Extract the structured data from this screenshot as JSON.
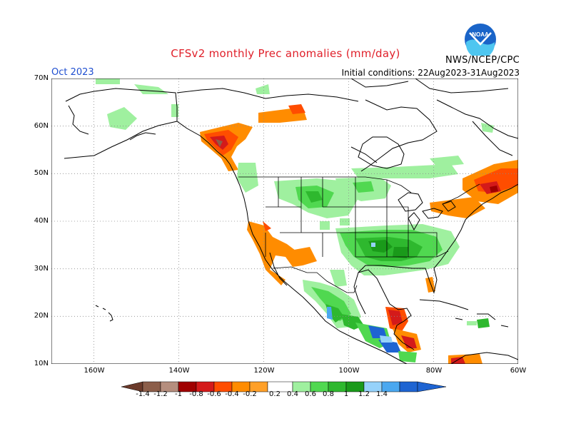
{
  "header": {
    "title": "CFSv2 monthly Prec anomalies (mm/day)",
    "period": "Oct 2023",
    "initial_conditions": "Initial conditions: 22Aug2023-31Aug2023",
    "agency": "NWS/NCEP/CPC",
    "logo_text": "NOAA"
  },
  "axes": {
    "lat_labels": [
      "70N",
      "60N",
      "50N",
      "40N",
      "30N",
      "20N",
      "10N"
    ],
    "lon_labels": [
      "160W",
      "140W",
      "120W",
      "100W",
      "80W",
      "60W"
    ]
  },
  "legend": {
    "labels": [
      "-1.4",
      "-1.2",
      "-1",
      "-0.8",
      "-0.6",
      "-0.4",
      "-0.2",
      "0.2",
      "0.4",
      "0.6",
      "0.8",
      "1",
      "1.2",
      "1.4"
    ],
    "colors": [
      "#6b3a2a",
      "#8c5e4a",
      "#b58e7e",
      "#a00000",
      "#d41a1a",
      "#ff4d00",
      "#ff8c00",
      "#ffa028",
      "#ffffff",
      "#9ff09f",
      "#50d850",
      "#2eb82e",
      "#1a9a1a",
      "#96d2fa",
      "#4aa8f0",
      "#1e64d2"
    ]
  },
  "colors": {
    "title": "#e0202a",
    "period": "#1f4fd0",
    "land_outline": "#000000",
    "grid": "#8a8a8a"
  }
}
